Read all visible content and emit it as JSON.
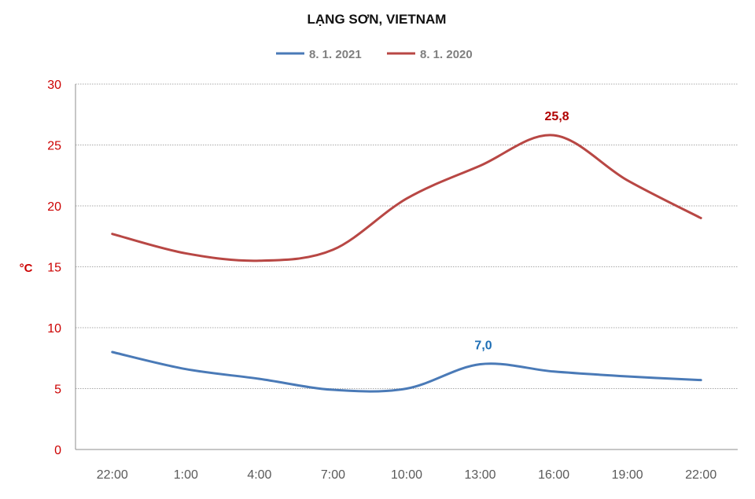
{
  "chart_data": {
    "type": "line",
    "title": "LẠNG SƠN, VIETNAM",
    "ylabel": "°C",
    "xlabel": "",
    "categories": [
      "22:00",
      "1:00",
      "4:00",
      "7:00",
      "10:00",
      "13:00",
      "16:00",
      "19:00",
      "22:00"
    ],
    "ylim": [
      0,
      30
    ],
    "yticks": [
      "0",
      "5",
      "10",
      "15",
      "20",
      "25",
      "30"
    ],
    "grid": true,
    "legend_position": "top",
    "series": [
      {
        "name": "8. 1. 2021",
        "color": "#4a7ab7",
        "values": [
          8.0,
          6.6,
          5.8,
          4.9,
          5.0,
          7.0,
          6.4,
          6.0,
          5.7
        ],
        "data_label": {
          "index": 5,
          "text": "7,0",
          "color": "#1f6fb5"
        }
      },
      {
        "name": "8. 1. 2020",
        "color": "#b84744",
        "values": [
          17.7,
          16.1,
          15.5,
          16.4,
          20.6,
          23.3,
          25.8,
          22.1,
          19.0
        ],
        "data_label": {
          "index": 6,
          "text": "25,8",
          "color": "#b00000"
        }
      }
    ]
  }
}
